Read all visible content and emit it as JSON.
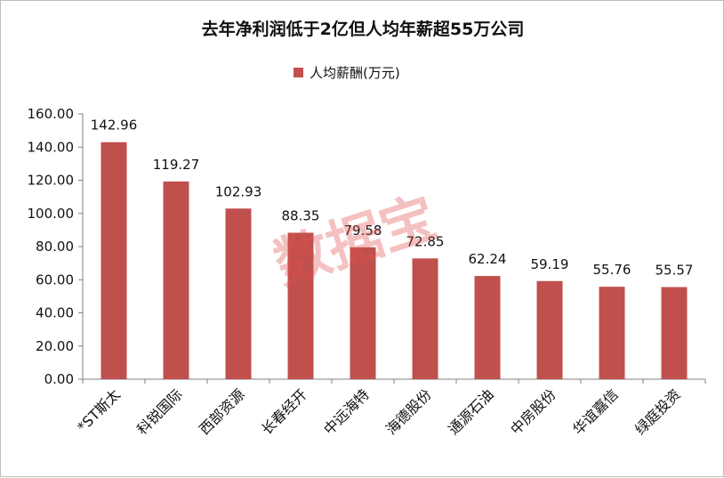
{
  "chart_data": {
    "type": "bar",
    "title": "去年净利润低于2亿但人均年薪超55万公司",
    "legend": {
      "position": "top",
      "entries": [
        "人均薪酬(万元)"
      ]
    },
    "categories": [
      "*ST斯太",
      "科锐国际",
      "西部资源",
      "长春经开",
      "中远海特",
      "海德股份",
      "通源石油",
      "中房股份",
      "华谊嘉信",
      "绿庭投资"
    ],
    "series": [
      {
        "name": "人均薪酬(万元)",
        "values": [
          142.96,
          119.27,
          102.93,
          88.35,
          79.58,
          72.85,
          62.24,
          59.19,
          55.76,
          55.57
        ]
      }
    ],
    "data_labels": [
      "142.96",
      "119.27",
      "102.93",
      "88.35",
      "79.58",
      "72.85",
      "62.24",
      "59.19",
      "55.76",
      "55.57"
    ],
    "ylim": [
      0,
      160
    ],
    "yticks": [
      "0.00",
      "20.00",
      "40.00",
      "60.00",
      "80.00",
      "100.00",
      "120.00",
      "140.00",
      "160.00"
    ],
    "grid": false,
    "bar_color": "#c0504d",
    "watermark": "数据宝"
  }
}
